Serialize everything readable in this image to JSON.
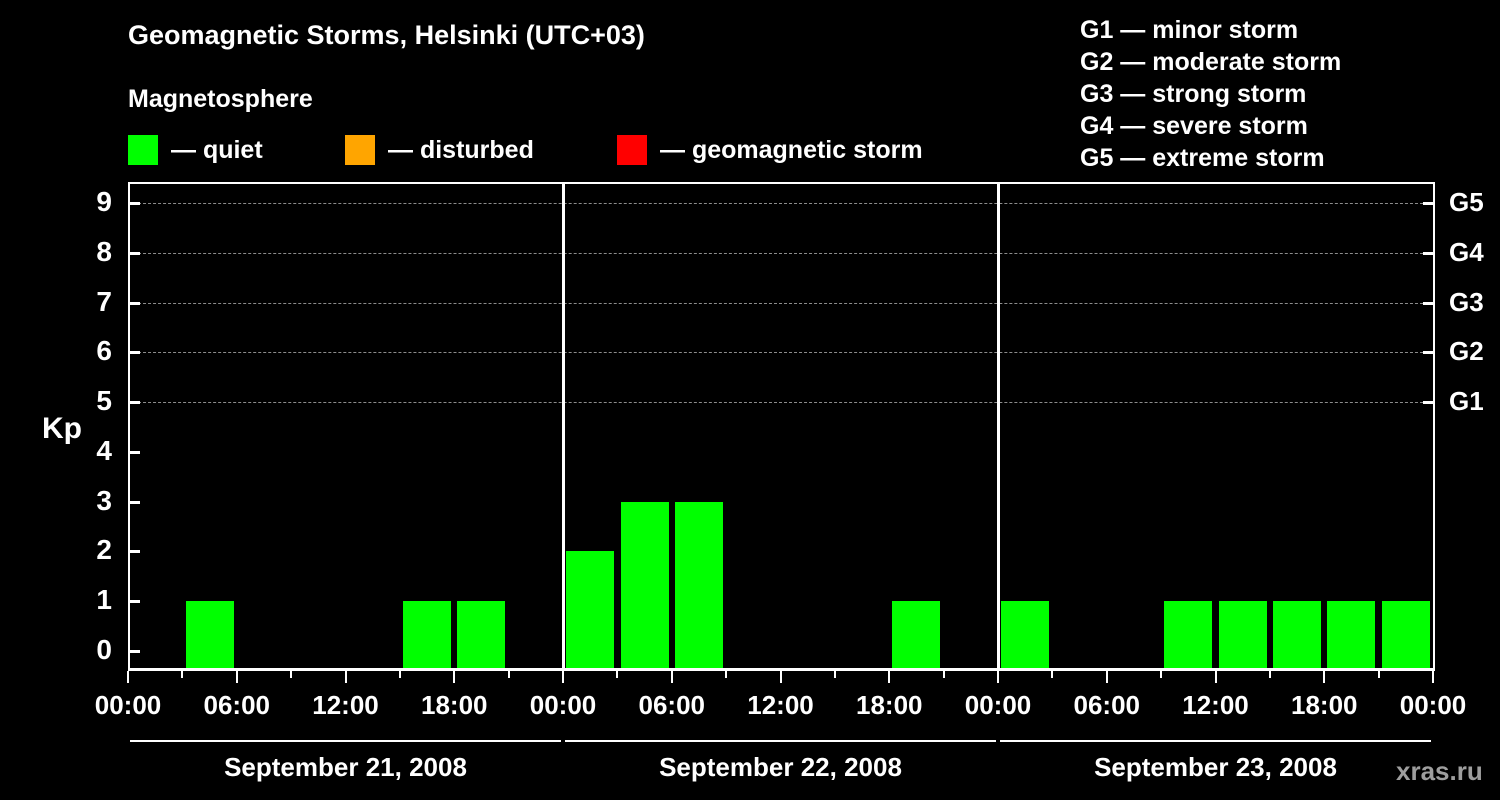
{
  "title": "Geomagnetic Storms, Helsinki (UTC+03)",
  "subtitle": "Magnetosphere",
  "legend": {
    "items": [
      {
        "name": "quiet",
        "label": "— quiet",
        "color": "#00ff00"
      },
      {
        "name": "disturbed",
        "label": "— disturbed",
        "color": "#ffa500"
      },
      {
        "name": "geomagnetic-storm",
        "label": "— geomagnetic storm",
        "color": "#ff0000"
      }
    ]
  },
  "storm_scale": [
    {
      "label": "G1 — minor storm"
    },
    {
      "label": "G2 — moderate storm"
    },
    {
      "label": "G3 — strong storm"
    },
    {
      "label": "G4 — severe storm"
    },
    {
      "label": "G5 — extreme storm"
    }
  ],
  "watermark": "xras.ru",
  "chart_data": {
    "type": "bar",
    "title": "Geomagnetic Storms, Helsinki (UTC+03)",
    "ylabel": "Kp",
    "ylim": [
      0,
      9
    ],
    "yticks": [
      0,
      1,
      2,
      3,
      4,
      5,
      6,
      7,
      8,
      9
    ],
    "grid_levels": [
      5,
      6,
      7,
      8,
      9
    ],
    "grid_style": "dashed",
    "bar_color": "#00ff00",
    "right_axis_labels": [
      {
        "label": "G1",
        "kp": 5
      },
      {
        "label": "G2",
        "kp": 6
      },
      {
        "label": "G3",
        "kp": 7
      },
      {
        "label": "G4",
        "kp": 8
      },
      {
        "label": "G5",
        "kp": 9
      }
    ],
    "slot_hours": [
      "00:00",
      "03:00",
      "06:00",
      "09:00",
      "12:00",
      "15:00",
      "18:00",
      "21:00"
    ],
    "x_tick_labels": [
      "00:00",
      "06:00",
      "12:00",
      "18:00"
    ],
    "final_tick_label": "00:00",
    "days": [
      {
        "date": "September 21, 2008",
        "values": [
          0,
          1,
          0,
          0,
          0,
          1,
          1,
          0
        ]
      },
      {
        "date": "September 22, 2008",
        "values": [
          2,
          3,
          3,
          0,
          0,
          0,
          1,
          0
        ]
      },
      {
        "date": "September 23, 2008",
        "values": [
          1,
          0,
          0,
          1,
          1,
          1,
          1,
          1
        ]
      }
    ]
  }
}
